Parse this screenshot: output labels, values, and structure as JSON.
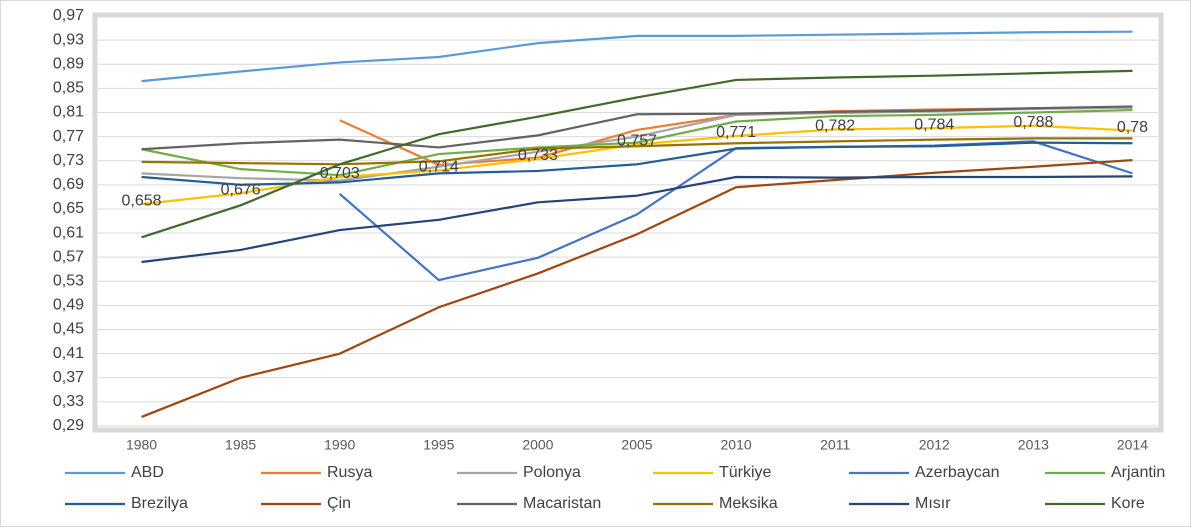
{
  "chart_data": {
    "type": "line",
    "categories": [
      "1980",
      "1985",
      "1990",
      "1995",
      "2000",
      "2005",
      "2010",
      "2011",
      "2012",
      "2013",
      "2014"
    ],
    "series": [
      {
        "name": "ABD",
        "color": "#5b9bd5",
        "values": [
          0.862,
          0.878,
          0.893,
          0.902,
          0.925,
          0.937,
          0.937,
          0.939,
          0.941,
          0.943,
          0.944
        ]
      },
      {
        "name": "Rusya",
        "color": "#ed7d31",
        "values": [
          null,
          null,
          0.797,
          0.723,
          0.735,
          0.781,
          0.806,
          0.812,
          0.815,
          0.817,
          0.818
        ]
      },
      {
        "name": "Polonya",
        "color": "#a5a5a5",
        "values": [
          0.709,
          0.701,
          0.697,
          0.72,
          0.745,
          0.77,
          0.806,
          0.809,
          0.812,
          0.816,
          0.818
        ]
      },
      {
        "name": "Türkiye",
        "color": "#ffc000",
        "values": [
          0.658,
          0.676,
          0.703,
          0.714,
          0.733,
          0.757,
          0.771,
          0.782,
          0.784,
          0.788,
          0.78
        ],
        "value_labels": [
          "0,658",
          "0,676",
          "0,703",
          "0,714",
          "0,733",
          "0,757",
          "0,771",
          "0,782",
          "0,784",
          "0,788",
          "0,78"
        ]
      },
      {
        "name": "Azerbaycan",
        "color": "#4472c4",
        "values": [
          null,
          null,
          0.675,
          0.532,
          0.569,
          0.641,
          0.751,
          0.753,
          0.755,
          0.762,
          0.709
        ]
      },
      {
        "name": "Arjantin",
        "color": "#70ad47",
        "values": [
          0.749,
          0.716,
          0.706,
          0.741,
          0.752,
          0.76,
          0.795,
          0.804,
          0.806,
          0.81,
          0.814
        ]
      },
      {
        "name": "Brezilya",
        "color": "#255e91",
        "values": [
          0.703,
          0.69,
          0.694,
          0.709,
          0.713,
          0.724,
          0.75,
          0.753,
          0.754,
          0.76,
          0.759
        ]
      },
      {
        "name": "Çin",
        "color": "#9e480e",
        "values": [
          0.305,
          0.37,
          0.41,
          0.487,
          0.543,
          0.608,
          0.686,
          0.698,
          0.71,
          0.72,
          0.731
        ]
      },
      {
        "name": "Macaristan",
        "color": "#636363",
        "values": [
          0.749,
          0.759,
          0.765,
          0.752,
          0.772,
          0.807,
          0.808,
          0.811,
          0.813,
          0.817,
          0.82
        ]
      },
      {
        "name": "Meksika",
        "color": "#997300",
        "values": [
          0.728,
          0.726,
          0.724,
          0.729,
          0.75,
          0.754,
          0.759,
          0.762,
          0.765,
          0.767,
          0.767
        ]
      },
      {
        "name": "Mısır",
        "color": "#264478",
        "values": [
          0.562,
          0.582,
          0.615,
          0.632,
          0.661,
          0.672,
          0.703,
          0.702,
          0.703,
          0.703,
          0.704
        ]
      },
      {
        "name": "Kore",
        "color": "#43682b",
        "values": [
          0.603,
          0.656,
          0.724,
          0.774,
          0.803,
          0.835,
          0.864,
          0.868,
          0.871,
          0.875,
          0.879
        ]
      }
    ],
    "ylim": [
      0.29,
      0.97
    ],
    "yticks": [
      {
        "value": 0.29,
        "label": "0,29"
      },
      {
        "value": 0.33,
        "label": "0,33"
      },
      {
        "value": 0.37,
        "label": "0,37"
      },
      {
        "value": 0.41,
        "label": "0,41"
      },
      {
        "value": 0.45,
        "label": "0,45"
      },
      {
        "value": 0.49,
        "label": "0,49"
      },
      {
        "value": 0.53,
        "label": "0,53"
      },
      {
        "value": 0.57,
        "label": "0,57"
      },
      {
        "value": 0.61,
        "label": "0,61"
      },
      {
        "value": 0.65,
        "label": "0,65"
      },
      {
        "value": 0.69,
        "label": "0,69"
      },
      {
        "value": 0.73,
        "label": "0,73"
      },
      {
        "value": 0.77,
        "label": "0,77"
      },
      {
        "value": 0.81,
        "label": "0,81"
      },
      {
        "value": 0.85,
        "label": "0,85"
      },
      {
        "value": 0.89,
        "label": "0,89"
      },
      {
        "value": 0.93,
        "label": "0,93"
      },
      {
        "value": 0.97,
        "label": "0,97"
      }
    ],
    "grid": true,
    "legend": "bottom"
  }
}
